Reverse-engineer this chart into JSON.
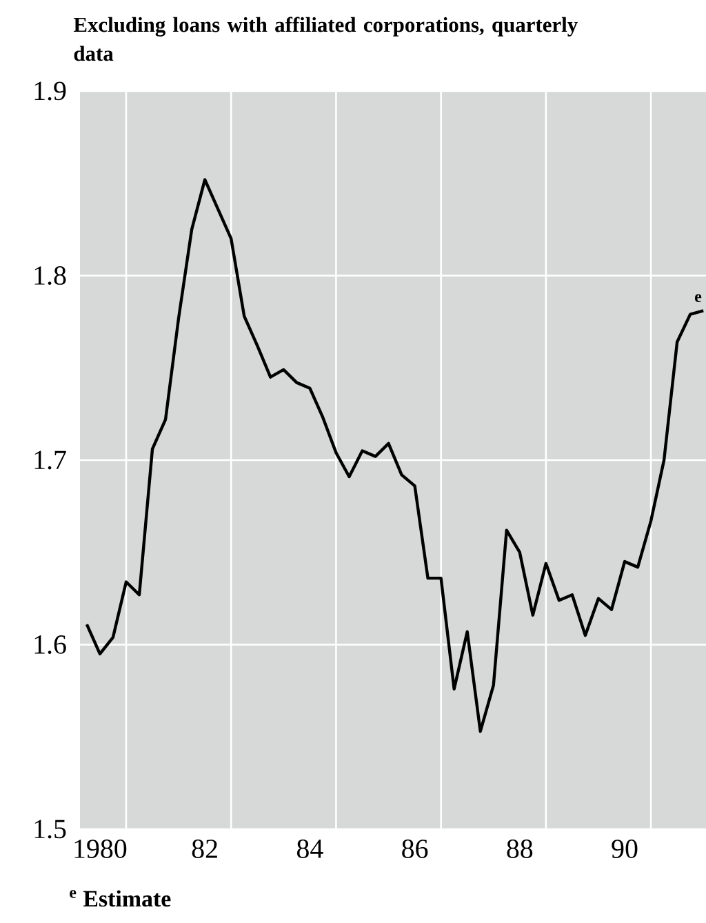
{
  "chart_data": {
    "type": "line",
    "title": "Excluding loans with affiliated corporations, quarterly data",
    "annotations": [
      {
        "text": "e",
        "x": 1991.5,
        "y": 1.781
      },
      "$^{e}$ Estimate"
    ],
    "x": [
      1979.75,
      1980.0,
      1980.25,
      1980.5,
      1980.75,
      1981.0,
      1981.25,
      1981.5,
      1981.75,
      1982.0,
      1982.25,
      1982.5,
      1982.75,
      1983.0,
      1983.25,
      1983.5,
      1983.75,
      1984.0,
      1984.25,
      1984.5,
      1984.75,
      1985.0,
      1985.25,
      1985.5,
      1985.75,
      1986.0,
      1986.25,
      1986.5,
      1986.75,
      1987.0,
      1987.25,
      1987.5,
      1987.75,
      1988.0,
      1988.25,
      1988.5,
      1988.75,
      1989.0,
      1989.25,
      1989.5,
      1989.75,
      1990.0,
      1990.25,
      1990.5,
      1990.75,
      1991.0,
      1991.25,
      1991.5
    ],
    "series": [
      {
        "color": "#000000",
        "values": [
          1.611,
          1.595,
          1.604,
          1.634,
          1.627,
          1.706,
          1.722,
          1.777,
          1.825,
          1.852,
          1.836,
          1.82,
          1.778,
          1.762,
          1.745,
          1.749,
          1.742,
          1.739,
          1.723,
          1.704,
          1.691,
          1.705,
          1.702,
          1.709,
          1.692,
          1.686,
          1.636,
          1.636,
          1.576,
          1.607,
          1.553,
          1.578,
          1.662,
          1.65,
          1.616,
          1.644,
          1.624,
          1.627,
          1.605,
          1.625,
          1.619,
          1.645,
          1.642,
          1.667,
          1.7,
          1.764,
          1.779,
          1.781
        ]
      }
    ],
    "xlim": [
      1979.62,
      1991.55
    ],
    "xticks": [
      {
        "value": 1980,
        "label": "1980"
      },
      {
        "value": 1980.5,
        "label": null
      },
      {
        "value": 1982,
        "label": "82"
      },
      {
        "value": 1982.5,
        "label": null
      },
      {
        "value": 1984,
        "label": "84"
      },
      {
        "value": 1984.5,
        "label": null
      },
      {
        "value": 1986,
        "label": "86"
      },
      {
        "value": 1986.5,
        "label": null
      },
      {
        "value": 1988,
        "label": "88"
      },
      {
        "value": 1988.5,
        "label": null
      },
      {
        "value": 1990,
        "label": "90"
      },
      {
        "value": 1990.5,
        "label": null
      }
    ],
    "ylim": [
      1.5,
      1.9
    ],
    "yticks": [
      1.5,
      1.6,
      1.7,
      1.8,
      1.9
    ],
    "grid": true
  }
}
